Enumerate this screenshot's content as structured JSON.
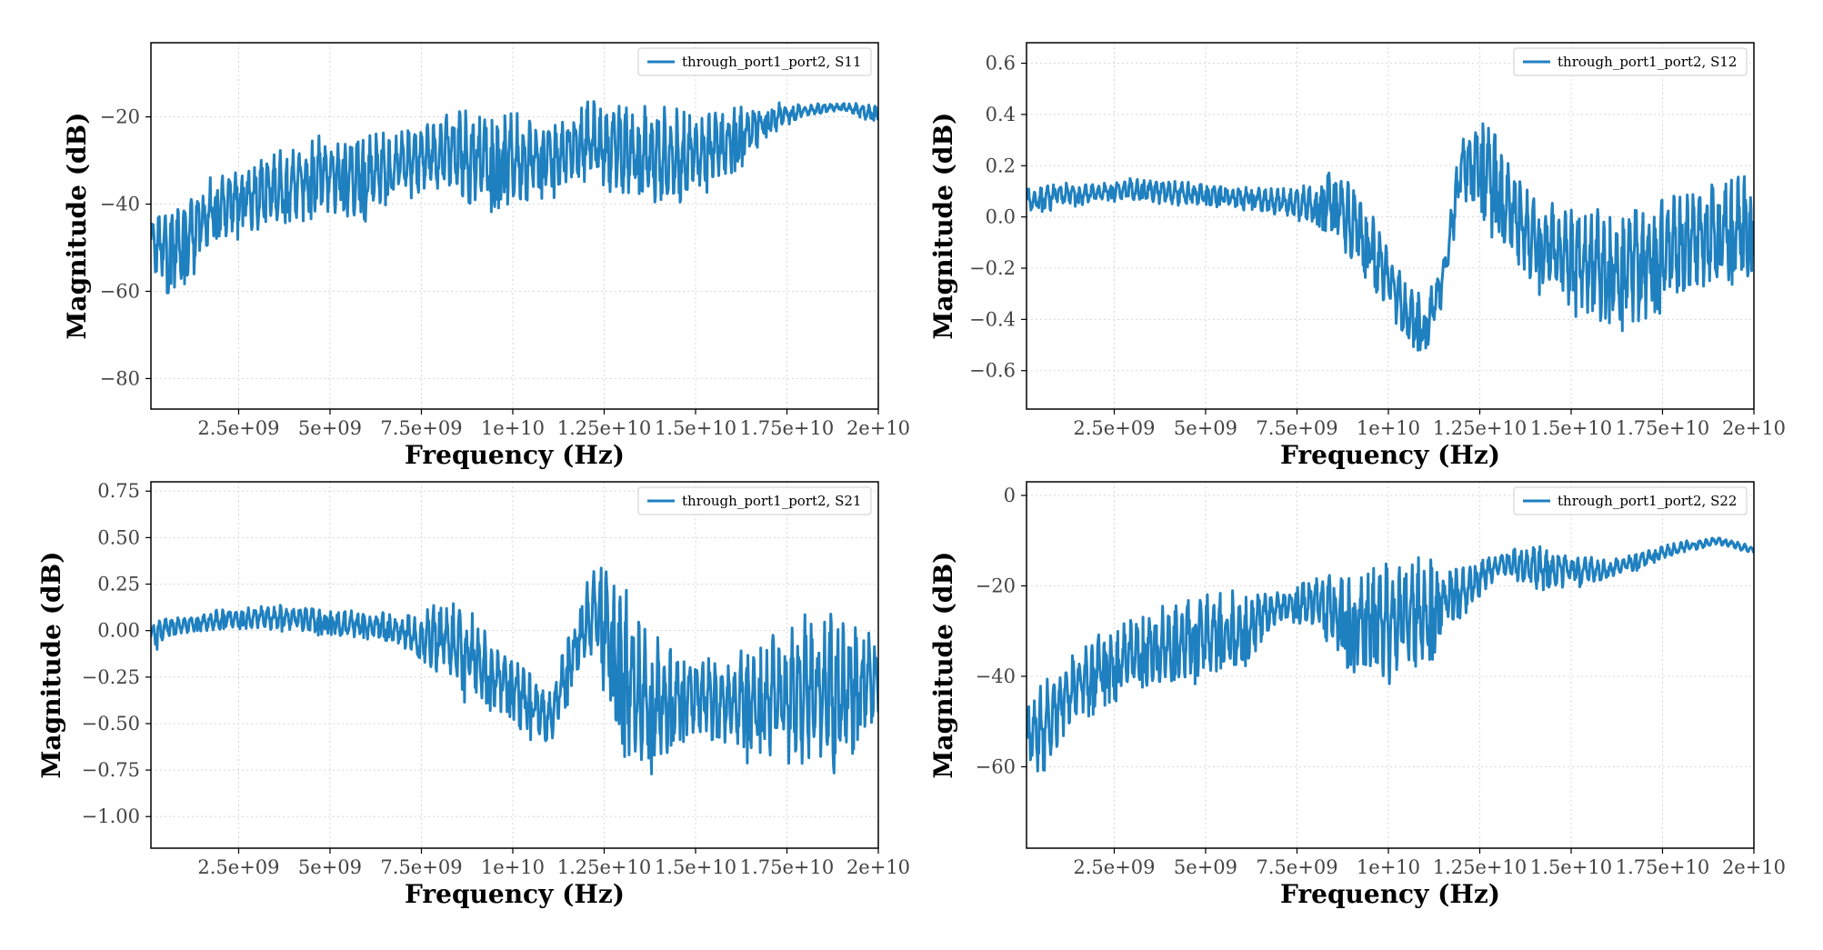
{
  "chart_data": [
    {
      "type": "line",
      "id": "s11",
      "xlabel": "Frequency (Hz)",
      "ylabel": "Magnitude (dB)",
      "xlim": [
        100000000,
        20000000000
      ],
      "ylim": [
        -87,
        -3
      ],
      "xticks": [
        2500000000,
        5000000000,
        7500000000,
        10000000000,
        12500000000,
        15000000000,
        17500000000,
        20000000000
      ],
      "xtick_labels": [
        "2.5e+09",
        "5e+09",
        "7.5e+09",
        "1e+10",
        "1.25e+10",
        "1.5e+10",
        "1.75e+10",
        "2e+10"
      ],
      "yticks": [
        -80,
        -60,
        -40,
        -20
      ],
      "ytick_labels": [
        "−80",
        "−60",
        "−40",
        "−20"
      ],
      "grid": true,
      "legend_position": "top-right",
      "series": [
        {
          "name": "through_port1_port2, S11",
          "color": "#1f80c0",
          "x": [
            100000000,
            500000000,
            1000000000,
            2000000000,
            3000000000,
            4000000000,
            5000000000,
            6000000000,
            7000000000,
            8000000000,
            9000000000,
            10000000000,
            11000000000,
            12000000000,
            13000000000,
            14000000000,
            15000000000,
            16000000000,
            17000000000,
            18000000000,
            19000000000,
            20000000000
          ],
          "upper": [
            -42,
            -39,
            -36,
            -31,
            -28,
            -25,
            -22,
            -21.5,
            -22,
            -18,
            -16,
            -17.5,
            -19,
            -15,
            -15.5,
            -16,
            -17,
            -17,
            -16,
            -17,
            -16.5,
            -17
          ],
          "lower": [
            -56,
            -62,
            -60,
            -50,
            -47,
            -46,
            -44,
            -44,
            -40,
            -38,
            -42,
            -42,
            -40,
            -36,
            -40,
            -43,
            -40,
            -34,
            -25,
            -20,
            -19,
            -22
          ]
        }
      ]
    },
    {
      "type": "line",
      "id": "s12",
      "xlabel": "Frequency (Hz)",
      "ylabel": "Magnitude (dB)",
      "xlim": [
        100000000,
        20000000000
      ],
      "ylim": [
        -0.75,
        0.68
      ],
      "xticks": [
        2500000000,
        5000000000,
        7500000000,
        10000000000,
        12500000000,
        15000000000,
        17500000000,
        20000000000
      ],
      "xtick_labels": [
        "2.5e+09",
        "5e+09",
        "7.5e+09",
        "1e+10",
        "1.25e+10",
        "1.5e+10",
        "1.75e+10",
        "2e+10"
      ],
      "yticks": [
        -0.6,
        -0.4,
        -0.2,
        0.0,
        0.2,
        0.4,
        0.6
      ],
      "ytick_labels": [
        "−0.6",
        "−0.4",
        "−0.2",
        "0.0",
        "0.2",
        "0.4",
        "0.6"
      ],
      "grid": true,
      "legend_position": "top-right",
      "series": [
        {
          "name": "through_port1_port2, S12",
          "color": "#1f80c0",
          "x": [
            100000000,
            1000000000,
            2000000000,
            3000000000,
            4000000000,
            5000000000,
            6000000000,
            7000000000,
            8000000000,
            8500000000,
            9000000000,
            9500000000,
            10000000000,
            10500000000,
            11000000000,
            11500000000,
            12000000000,
            12500000000,
            13000000000,
            14000000000,
            15000000000,
            16000000000,
            17000000000,
            18000000000,
            19000000000,
            20000000000
          ],
          "upper": [
            0.12,
            0.14,
            0.14,
            0.16,
            0.15,
            0.14,
            0.13,
            0.12,
            0.15,
            0.25,
            0.18,
            0.05,
            -0.1,
            -0.25,
            -0.3,
            -0.15,
            0.35,
            0.45,
            0.35,
            0.1,
            0.08,
            0.05,
            0.1,
            0.15,
            0.2,
            0.18
          ],
          "lower": [
            0.0,
            0.03,
            0.05,
            0.06,
            0.04,
            0.03,
            0.02,
            0.0,
            -0.05,
            -0.12,
            -0.2,
            -0.28,
            -0.38,
            -0.5,
            -0.55,
            -0.35,
            0.05,
            0.0,
            -0.12,
            -0.3,
            -0.38,
            -0.45,
            -0.45,
            -0.35,
            -0.3,
            -0.25
          ]
        }
      ]
    },
    {
      "type": "line",
      "id": "s21",
      "xlabel": "Frequency (Hz)",
      "ylabel": "Magnitude (dB)",
      "xlim": [
        100000000,
        20000000000
      ],
      "ylim": [
        -1.17,
        0.8
      ],
      "xticks": [
        2500000000,
        5000000000,
        7500000000,
        10000000000,
        12500000000,
        15000000000,
        17500000000,
        20000000000
      ],
      "xtick_labels": [
        "2.5e+09",
        "5e+09",
        "7.5e+09",
        "1e+10",
        "1.25e+10",
        "1.5e+10",
        "1.75e+10",
        "2e+10"
      ],
      "yticks": [
        -1.0,
        -0.75,
        -0.5,
        -0.25,
        0.0,
        0.25,
        0.5,
        0.75
      ],
      "ytick_labels": [
        "−1.00",
        "−0.75",
        "−0.50",
        "−0.25",
        "0.00",
        "0.25",
        "0.50",
        "0.75"
      ],
      "grid": true,
      "legend_position": "top-right",
      "series": [
        {
          "name": "through_port1_port2, S21",
          "color": "#1f80c0",
          "x": [
            100000000,
            1000000000,
            2000000000,
            3000000000,
            4000000000,
            5000000000,
            6000000000,
            7000000000,
            7500000000,
            8000000000,
            8500000000,
            9000000000,
            9500000000,
            10000000000,
            10500000000,
            11000000000,
            11500000000,
            12000000000,
            12500000000,
            13000000000,
            13500000000,
            14000000000,
            15000000000,
            16000000000,
            17000000000,
            18000000000,
            19000000000,
            20000000000
          ],
          "upper": [
            0.08,
            0.09,
            0.12,
            0.14,
            0.15,
            0.13,
            0.12,
            0.1,
            0.12,
            0.2,
            0.2,
            0.1,
            0.0,
            -0.1,
            -0.2,
            -0.3,
            0.0,
            0.3,
            0.5,
            0.35,
            0.15,
            0.0,
            -0.1,
            -0.1,
            -0.0,
            0.15,
            0.2,
            0.05
          ],
          "lower": [
            -0.12,
            -0.02,
            0.0,
            0.0,
            -0.02,
            -0.03,
            -0.05,
            -0.1,
            -0.2,
            -0.3,
            -0.4,
            -0.4,
            -0.45,
            -0.5,
            -0.6,
            -0.65,
            -0.4,
            -0.2,
            -0.4,
            -0.7,
            -0.85,
            -0.75,
            -0.6,
            -0.7,
            -0.75,
            -0.8,
            -0.85,
            -0.5
          ]
        }
      ]
    },
    {
      "type": "line",
      "id": "s22",
      "xlabel": "Frequency (Hz)",
      "ylabel": "Magnitude (dB)",
      "xlim": [
        100000000,
        20000000000
      ],
      "ylim": [
        -78,
        3
      ],
      "xticks": [
        2500000000,
        5000000000,
        7500000000,
        10000000000,
        12500000000,
        15000000000,
        17500000000,
        20000000000
      ],
      "xtick_labels": [
        "2.5e+09",
        "5e+09",
        "7.5e+09",
        "1e+10",
        "1.25e+10",
        "1.5e+10",
        "1.75e+10",
        "2e+10"
      ],
      "yticks": [
        -60,
        -40,
        -20,
        0
      ],
      "ytick_labels": [
        "−60",
        "−40",
        "−20",
        "0"
      ],
      "grid": true,
      "legend_position": "top-right",
      "series": [
        {
          "name": "through_port1_port2, S22",
          "color": "#1f80c0",
          "x": [
            100000000,
            500000000,
            1000000000,
            2000000000,
            3000000000,
            4000000000,
            5000000000,
            6000000000,
            7000000000,
            8000000000,
            9000000000,
            10000000000,
            11000000000,
            12000000000,
            13000000000,
            14000000000,
            15000000000,
            16000000000,
            17000000000,
            18000000000,
            19000000000,
            20000000000
          ],
          "upper": [
            -45,
            -40,
            -36,
            -30,
            -26,
            -22,
            -20,
            -19,
            -21,
            -17,
            -13,
            -12,
            -12,
            -15,
            -12,
            -10,
            -11,
            -14,
            -12,
            -10,
            -9,
            -11
          ],
          "lower": [
            -60,
            -66,
            -55,
            -48,
            -44,
            -43,
            -42,
            -40,
            -28,
            -30,
            -40,
            -44,
            -40,
            -28,
            -18,
            -22,
            -21,
            -19,
            -16,
            -13,
            -11,
            -13
          ]
        }
      ]
    }
  ]
}
